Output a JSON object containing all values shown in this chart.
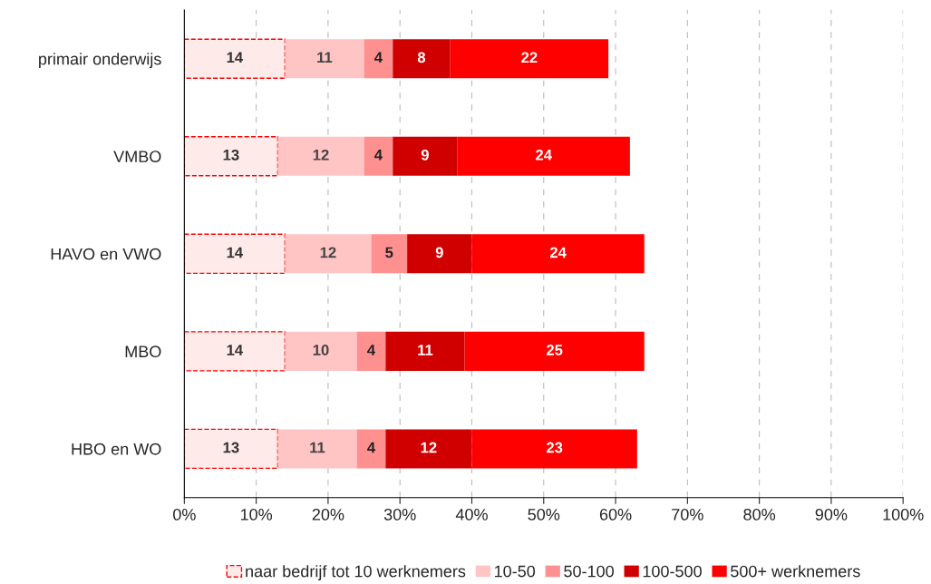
{
  "chart_data": {
    "type": "bar",
    "orientation": "horizontal",
    "stacked": true,
    "data_labels": true,
    "categories": [
      "primair onderwijs",
      "VMBO",
      "HAVO en VWO",
      "MBO",
      "HBO en WO"
    ],
    "series": [
      {
        "name": "naar bedrijf tot 10 werknemers",
        "color": "#ffeaea",
        "values": [
          14,
          13,
          14,
          14,
          13
        ]
      },
      {
        "name": "10-50",
        "color": "#ffc4c4",
        "values": [
          11,
          12,
          12,
          10,
          11
        ]
      },
      {
        "name": "50-100",
        "color": "#ff9090",
        "values": [
          4,
          4,
          5,
          4,
          4
        ]
      },
      {
        "name": "100-500",
        "color": "#d00000",
        "values": [
          8,
          9,
          9,
          11,
          12
        ]
      },
      {
        "name": "500+ werknemers",
        "color": "#ff0000",
        "values": [
          22,
          24,
          24,
          25,
          23
        ]
      }
    ],
    "xlim": [
      0,
      100
    ],
    "xticks": [
      {
        "value": 0,
        "label": "0%"
      },
      {
        "value": 10,
        "label": "10%"
      },
      {
        "value": 20,
        "label": "20%"
      },
      {
        "value": 30,
        "label": "30%"
      },
      {
        "value": 40,
        "label": "40%"
      },
      {
        "value": 50,
        "label": "50%"
      },
      {
        "value": 60,
        "label": "60%"
      },
      {
        "value": 70,
        "label": "70%"
      },
      {
        "value": 80,
        "label": "80%"
      },
      {
        "value": 90,
        "label": "90%"
      },
      {
        "value": 100,
        "label": "100%"
      }
    ],
    "grid": "x",
    "legend": "bottom"
  }
}
